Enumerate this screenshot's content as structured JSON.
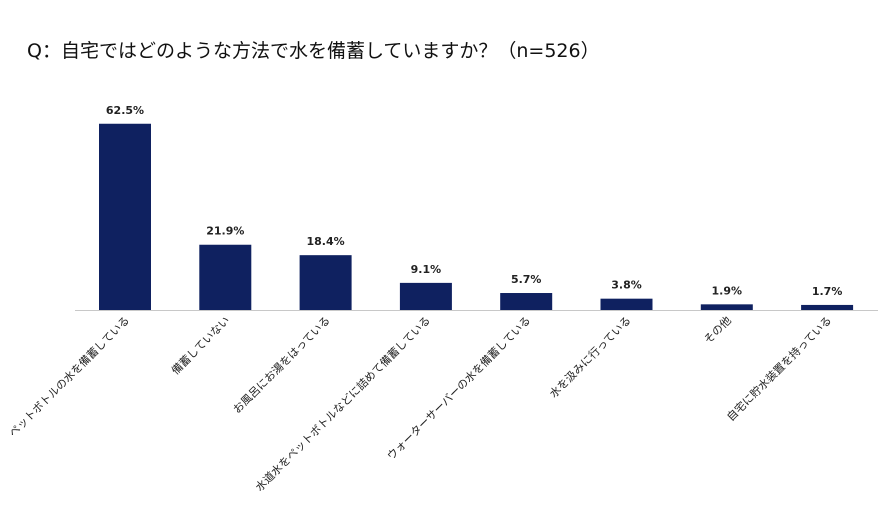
{
  "title": "Q：自宅ではどのような方法で水を備蓄していますか？（n=526）",
  "chart_data": {
    "type": "bar",
    "title": "Q：自宅ではどのような方法で水を備蓄していますか？（n=526）",
    "categories": [
      "ペットボトルの水を備蓄している",
      "備蓄していない",
      "お風呂にお湯をはっている",
      "水道水をペットボトルなどに詰めて備蓄している",
      "ウォーターサーバーの水を備蓄している",
      "水を汲みに行っている",
      "その他",
      "自宅に貯水装置を持っている"
    ],
    "values": [
      62.5,
      21.9,
      18.4,
      9.1,
      5.7,
      3.8,
      1.9,
      1.7
    ],
    "value_labels": [
      "62.5%",
      "21.9%",
      "18.4%",
      "9.1%",
      "5.7%",
      "3.8%",
      "1.9%",
      "1.7%"
    ],
    "unit": "%",
    "bar_color": "#0f2160",
    "grid": false,
    "legend": "none"
  }
}
